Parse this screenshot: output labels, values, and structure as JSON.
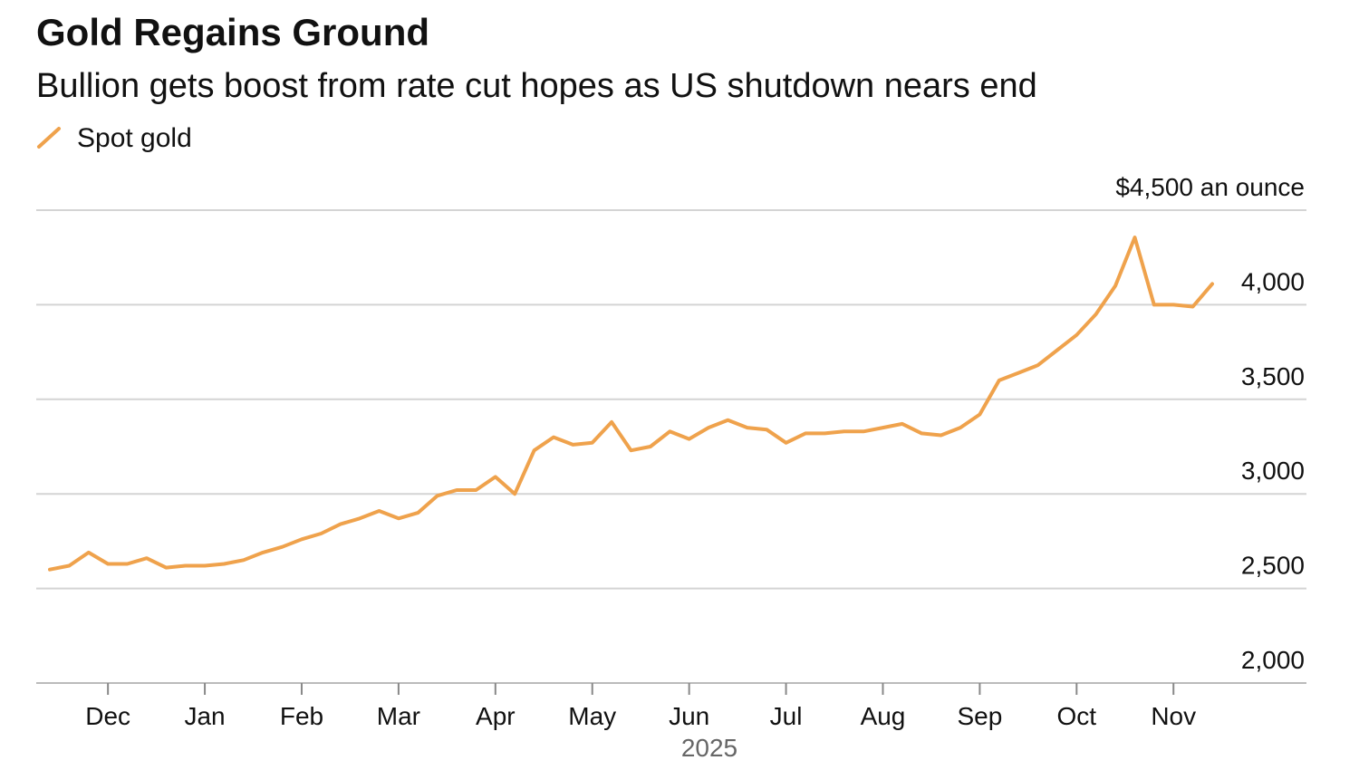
{
  "chart_data": {
    "type": "line",
    "title": "Gold Regains Ground",
    "subtitle": "Bullion gets boost from rate cut hopes as US shutdown nears end",
    "xlabel": "2025",
    "categories": [
      null,
      null,
      null,
      "Dec",
      null,
      null,
      null,
      null,
      "Jan",
      null,
      null,
      null,
      null,
      "Feb",
      null,
      null,
      null,
      null,
      "Mar",
      null,
      null,
      null,
      null,
      "Apr",
      null,
      null,
      null,
      null,
      "May",
      null,
      null,
      null,
      null,
      "Jun",
      null,
      null,
      null,
      null,
      "Jul",
      null,
      null,
      null,
      null,
      "Aug",
      null,
      null,
      null,
      null,
      "Sep",
      null,
      null,
      null,
      null,
      "Oct",
      null,
      null,
      null,
      null,
      "Nov",
      null,
      null
    ],
    "series": [
      {
        "name": "Spot gold",
        "color": "#efa24c",
        "values": [
          2600,
          2620,
          2690,
          2630,
          2630,
          2660,
          2610,
          2620,
          2620,
          2630,
          2650,
          2690,
          2720,
          2760,
          2790,
          2840,
          2870,
          2910,
          2870,
          2900,
          2990,
          3020,
          3020,
          3090,
          3000,
          3230,
          3300,
          3260,
          3270,
          3380,
          3230,
          3250,
          3330,
          3290,
          3350,
          3390,
          3350,
          3340,
          3270,
          3320,
          3320,
          3330,
          3330,
          3350,
          3370,
          3320,
          3310,
          3350,
          3420,
          3600,
          3640,
          3680,
          3760,
          3840,
          3950,
          4100,
          4356,
          4000,
          4000,
          3990,
          4110
        ]
      }
    ],
    "ylim": [
      2000,
      4500
    ],
    "yticks": [
      {
        "value": 2000,
        "label": "2,000"
      },
      {
        "value": 2500,
        "label": "2,500"
      },
      {
        "value": 3000,
        "label": "3,000"
      },
      {
        "value": 3500,
        "label": "3,500"
      },
      {
        "value": 4000,
        "label": "4,000"
      },
      {
        "value": 4500,
        "label": "$4,500 an ounce"
      }
    ],
    "grid": true,
    "legend": "top-left"
  }
}
